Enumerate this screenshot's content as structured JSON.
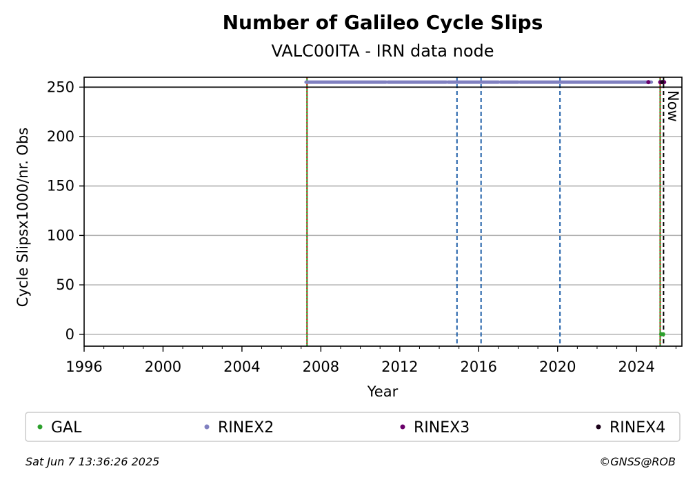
{
  "chart_data": {
    "type": "scatter",
    "title": "Number of Galileo Cycle Slips",
    "subtitle": "VALC00ITA - IRN data node",
    "xlabel": "Year",
    "ylabel": "Cycle Slipsx1000/nr. Obs",
    "xlim": [
      1996,
      2026.3
    ],
    "ylim": [
      -12,
      260
    ],
    "x_ticks": [
      1996,
      2000,
      2004,
      2008,
      2012,
      2016,
      2020,
      2024
    ],
    "x_tick_labels": [
      "1996",
      "2000",
      "2004",
      "2008",
      "2012",
      "2016",
      "2020",
      "2024"
    ],
    "y_ticks": [
      0,
      50,
      100,
      150,
      200,
      250
    ],
    "y_tick_labels": [
      "0",
      "50",
      "100",
      "150",
      "200",
      "250"
    ],
    "grid": "horizontal",
    "cap_line": 250,
    "series": [
      {
        "name": "GAL",
        "color": "#2ca02c",
        "points": [
          [
            2025.25,
            0
          ],
          [
            2025.35,
            0
          ]
        ]
      },
      {
        "name": "RINEX2",
        "color": "#8080c0",
        "segments": [
          [
            2007.25,
            2011.3
          ],
          [
            2011.4,
            2014.35
          ],
          [
            2014.45,
            2017.0
          ],
          [
            2017.1,
            2018.0
          ],
          [
            2018.1,
            2024.75
          ]
        ],
        "y": 255
      },
      {
        "name": "RINEX3",
        "color": "#6a006a",
        "points": [
          [
            2024.6,
            255
          ],
          [
            2025.2,
            255
          ],
          [
            2025.4,
            255
          ]
        ]
      },
      {
        "name": "RINEX4",
        "color": "#1a0019",
        "points": [
          [
            2025.3,
            255
          ]
        ]
      }
    ],
    "event_lines": [
      {
        "x": 2007.3,
        "style": "green-red-dotted"
      },
      {
        "x": 2014.9,
        "style": "blue-dashed"
      },
      {
        "x": 2016.12,
        "style": "blue-dashed"
      },
      {
        "x": 2020.12,
        "style": "blue-dashed"
      },
      {
        "x": 2025.2,
        "style": "green-red-dotted"
      },
      {
        "x": 2025.37,
        "style": "black-dashed"
      }
    ],
    "now_label": "Now",
    "legend_position": "bottom"
  },
  "footer": {
    "timestamp": "Sat Jun  7 13:36:26 2025",
    "credit": "©GNSS@ROB"
  }
}
